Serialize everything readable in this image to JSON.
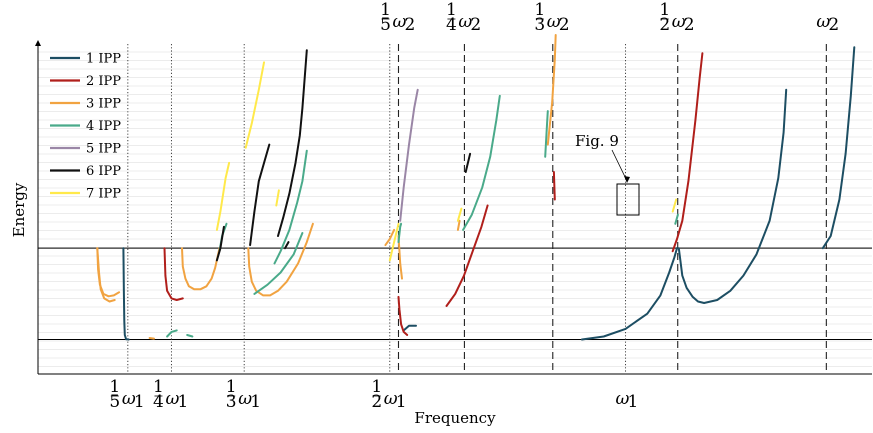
{
  "chart_data": {
    "type": "line",
    "xlabel": "Frequency",
    "ylabel": "Energy",
    "xlim": [
      0.1,
      1.05
    ],
    "ylim": [
      -1,
      10
    ],
    "grid": "horizontal",
    "legend_position": "top-left",
    "legend": [
      {
        "name": "1 IPP",
        "color": "#1d4e63"
      },
      {
        "name": "2 IPP",
        "color": "#b01f1b"
      },
      {
        "name": "3 IPP",
        "color": "#f1a341"
      },
      {
        "name": "4 IPP",
        "color": "#4aaa8a"
      },
      {
        "name": "5 IPP",
        "color": "#9a86a6"
      },
      {
        "name": "6 IPP",
        "color": "#111111"
      },
      {
        "name": "7 IPP",
        "color": "#ffe94a"
      }
    ],
    "bottom_ticks": [
      {
        "label_top": "1",
        "label_bot": "5",
        "sym": "ω",
        "sub": "1",
        "x": 0.2
      },
      {
        "label_top": "1",
        "label_bot": "4",
        "sym": "ω",
        "sub": "1",
        "x": 0.25
      },
      {
        "label_top": "1",
        "label_bot": "3",
        "sym": "ω",
        "sub": "1",
        "x": 0.3333
      },
      {
        "label_top": "1",
        "label_bot": "2",
        "sym": "ω",
        "sub": "1",
        "x": 0.5
      },
      {
        "label_top": "",
        "label_bot": "",
        "sym": "ω",
        "sub": "1",
        "x": 0.77
      }
    ],
    "top_ticks": [
      {
        "label_top": "1",
        "label_bot": "5",
        "sym": "ω",
        "sub": "2",
        "x": 0.51
      },
      {
        "label_top": "1",
        "label_bot": "4",
        "sym": "ω",
        "sub": "2",
        "x": 0.5855
      },
      {
        "label_top": "1",
        "label_bot": "3",
        "sym": "ω",
        "sub": "2",
        "x": 0.6867
      },
      {
        "label_top": "1",
        "label_bot": "2",
        "sym": "ω",
        "sub": "2",
        "x": 0.8298
      },
      {
        "label_top": "",
        "label_bot": "",
        "sym": "ω",
        "sub": "2",
        "x": 1.0
      }
    ],
    "h_lines": [
      0,
      3
    ],
    "annotation": {
      "text": "Fig. 9",
      "x": 0.82,
      "y": 4.2
    },
    "series": [
      {
        "name": "1 IPP",
        "color": "#1d4e63",
        "segments": [
          [
            [
              0.195,
              3
            ],
            [
              0.1955,
              1.5
            ],
            [
              0.196,
              0.6
            ],
            [
              0.1965,
              0.15
            ],
            [
              0.198,
              0.01
            ],
            [
              0.201,
              0
            ]
          ],
          [
            [
              0.516,
              0.3
            ],
            [
              0.522,
              0.45
            ],
            [
              0.53,
              0.45
            ]
          ],
          [
            [
              0.72,
              0
            ],
            [
              0.745,
              0.1
            ],
            [
              0.77,
              0.35
            ],
            [
              0.795,
              0.85
            ],
            [
              0.81,
              1.45
            ],
            [
              0.82,
              2.2
            ],
            [
              0.826,
              2.7
            ],
            [
              0.829,
              3.0
            ]
          ],
          [
            [
              0.831,
              3.0
            ],
            [
              0.835,
              2.1
            ],
            [
              0.84,
              1.7
            ],
            [
              0.847,
              1.4
            ],
            [
              0.853,
              1.25
            ],
            [
              0.86,
              1.2
            ],
            [
              0.875,
              1.3
            ],
            [
              0.89,
              1.6
            ],
            [
              0.905,
              2.1
            ],
            [
              0.92,
              2.8
            ],
            [
              0.935,
              3.9
            ],
            [
              0.945,
              5.3
            ],
            [
              0.951,
              6.8
            ],
            [
              0.954,
              8.2
            ]
          ],
          [
            [
              0.996,
              3
            ],
            [
              1.005,
              3.4
            ],
            [
              1.015,
              4.6
            ],
            [
              1.022,
              6.1
            ],
            [
              1.028,
              8.0
            ],
            [
              1.032,
              9.6
            ]
          ]
        ]
      },
      {
        "name": "2 IPP",
        "color": "#b01f1b",
        "segments": [
          [
            [
              0.242,
              3
            ],
            [
              0.243,
              2.1
            ],
            [
              0.245,
              1.6
            ],
            [
              0.25,
              1.35
            ],
            [
              0.256,
              1.3
            ],
            [
              0.263,
              1.35
            ]
          ],
          [
            [
              0.51,
              1.4
            ],
            [
              0.511,
              1.0
            ],
            [
              0.513,
              0.5
            ],
            [
              0.516,
              0.25
            ],
            [
              0.52,
              0.15
            ]
          ],
          [
            [
              0.565,
              1.1
            ],
            [
              0.575,
              1.5
            ],
            [
              0.585,
              2.1
            ],
            [
              0.595,
              2.9
            ],
            [
              0.605,
              3.7
            ],
            [
              0.612,
              4.4
            ]
          ],
          [
            [
              0.688,
              5.5
            ],
            [
              0.689,
              4.6
            ]
          ],
          [
            [
              0.824,
              2.9
            ],
            [
              0.829,
              3.3
            ],
            [
              0.835,
              3.9
            ],
            [
              0.842,
              5.2
            ],
            [
              0.85,
              7.2
            ],
            [
              0.855,
              8.6
            ],
            [
              0.858,
              9.4
            ]
          ]
        ]
      },
      {
        "name": "3 IPP",
        "color": "#f1a341",
        "segments": [
          [
            [
              0.165,
              3
            ],
            [
              0.166,
              2.3
            ],
            [
              0.168,
              1.8
            ],
            [
              0.172,
              1.5
            ],
            [
              0.178,
              1.42
            ],
            [
              0.184,
              1.45
            ],
            [
              0.19,
              1.55
            ]
          ],
          [
            [
              0.165,
              3
            ],
            [
              0.167,
              2.2
            ],
            [
              0.169,
              1.65
            ],
            [
              0.173,
              1.35
            ],
            [
              0.179,
              1.25
            ],
            [
              0.185,
              1.3
            ]
          ],
          [
            [
              0.225,
              0.05
            ],
            [
              0.23,
              0.03
            ]
          ],
          [
            [
              0.262,
              3
            ],
            [
              0.263,
              2.4
            ],
            [
              0.266,
              2.0
            ],
            [
              0.27,
              1.75
            ],
            [
              0.276,
              1.65
            ],
            [
              0.283,
              1.65
            ],
            [
              0.29,
              1.75
            ],
            [
              0.296,
              2.0
            ],
            [
              0.3,
              2.35
            ],
            [
              0.303,
              2.75
            ],
            [
              0.305,
              3.0
            ]
          ],
          [
            [
              0.338,
              3
            ],
            [
              0.339,
              2.4
            ],
            [
              0.342,
              1.9
            ],
            [
              0.347,
              1.6
            ],
            [
              0.355,
              1.45
            ],
            [
              0.363,
              1.45
            ],
            [
              0.372,
              1.6
            ],
            [
              0.382,
              1.9
            ],
            [
              0.395,
              2.5
            ],
            [
              0.405,
              3.2
            ],
            [
              0.412,
              3.8
            ]
          ],
          [
            [
              0.495,
              3.1
            ],
            [
              0.5,
              3.3
            ],
            [
              0.505,
              3.6
            ]
          ],
          [
            [
              0.51,
              3.4
            ],
            [
              0.512,
              2.5
            ],
            [
              0.514,
              2.0
            ]
          ],
          [
            [
              0.578,
              3.6
            ],
            [
              0.58,
              3.9
            ]
          ],
          [
            [
              0.681,
              6.4
            ],
            [
              0.686,
              7.8
            ],
            [
              0.689,
              9.2
            ],
            [
              0.69,
              10.0
            ]
          ]
        ]
      },
      {
        "name": "4 IPP",
        "color": "#4aaa8a",
        "segments": [
          [
            [
              0.245,
              0.1
            ],
            [
              0.25,
              0.25
            ],
            [
              0.256,
              0.3
            ]
          ],
          [
            [
              0.268,
              0.15
            ],
            [
              0.274,
              0.1
            ]
          ],
          [
            [
              0.305,
              2.9
            ],
            [
              0.308,
              3.4
            ],
            [
              0.313,
              3.8
            ]
          ],
          [
            [
              0.368,
              2.5
            ],
            [
              0.375,
              2.9
            ],
            [
              0.385,
              3.6
            ],
            [
              0.394,
              4.5
            ],
            [
              0.4,
              5.2
            ],
            [
              0.405,
              6.2
            ]
          ],
          [
            [
              0.345,
              1.5
            ],
            [
              0.36,
              1.8
            ],
            [
              0.375,
              2.2
            ],
            [
              0.39,
              2.8
            ],
            [
              0.4,
              3.5
            ]
          ],
          [
            [
              0.51,
              3.2
            ],
            [
              0.512,
              3.7
            ],
            [
              0.513,
              3.8
            ]
          ],
          [
            [
              0.584,
              3.6
            ],
            [
              0.594,
              4.1
            ],
            [
              0.606,
              5.0
            ],
            [
              0.615,
              6.0
            ],
            [
              0.622,
              7.2
            ],
            [
              0.626,
              8.0
            ]
          ],
          [
            [
              0.678,
              6.0
            ],
            [
              0.68,
              7.0
            ],
            [
              0.681,
              7.5
            ]
          ],
          [
            [
              0.827,
              3.8
            ],
            [
              0.83,
              4.1
            ]
          ]
        ]
      },
      {
        "name": "5 IPP",
        "color": "#9a86a6",
        "segments": [
          [
            [
              0.512,
              3.9
            ],
            [
              0.516,
              5.0
            ],
            [
              0.522,
              6.4
            ],
            [
              0.528,
              7.6
            ],
            [
              0.532,
              8.2
            ]
          ]
        ]
      },
      {
        "name": "6 IPP",
        "color": "#111111",
        "segments": [
          [
            [
              0.302,
              2.6
            ],
            [
              0.306,
              3.0
            ],
            [
              0.31,
              3.7
            ]
          ],
          [
            [
              0.34,
              3.1
            ],
            [
              0.345,
              4.2
            ],
            [
              0.35,
              5.2
            ],
            [
              0.357,
              5.9
            ],
            [
              0.362,
              6.4
            ]
          ],
          [
            [
              0.372,
              3.4
            ],
            [
              0.378,
              4.0
            ],
            [
              0.385,
              4.8
            ],
            [
              0.392,
              5.8
            ],
            [
              0.397,
              6.7
            ],
            [
              0.4,
              7.6
            ],
            [
              0.405,
              9.5
            ]
          ],
          [
            [
              0.587,
              5.5
            ],
            [
              0.592,
              6.1
            ]
          ],
          [
            [
              0.38,
              3.0
            ],
            [
              0.384,
              3.2
            ]
          ]
        ]
      },
      {
        "name": "7 IPP",
        "color": "#ffe94a",
        "segments": [
          [
            [
              0.302,
              3.6
            ],
            [
              0.306,
              4.2
            ],
            [
              0.312,
              5.3
            ],
            [
              0.316,
              5.8
            ]
          ],
          [
            [
              0.335,
              6.3
            ],
            [
              0.342,
              7.1
            ],
            [
              0.35,
              8.2
            ],
            [
              0.356,
              9.1
            ]
          ],
          [
            [
              0.37,
              4.4
            ],
            [
              0.373,
              4.9
            ]
          ],
          [
            [
              0.5,
              2.6
            ],
            [
              0.505,
              3.2
            ],
            [
              0.51,
              3.8
            ]
          ],
          [
            [
              0.578,
              3.9
            ],
            [
              0.582,
              4.3
            ]
          ],
          [
            [
              0.824,
              4.2
            ],
            [
              0.828,
              4.6
            ]
          ]
        ]
      }
    ]
  }
}
